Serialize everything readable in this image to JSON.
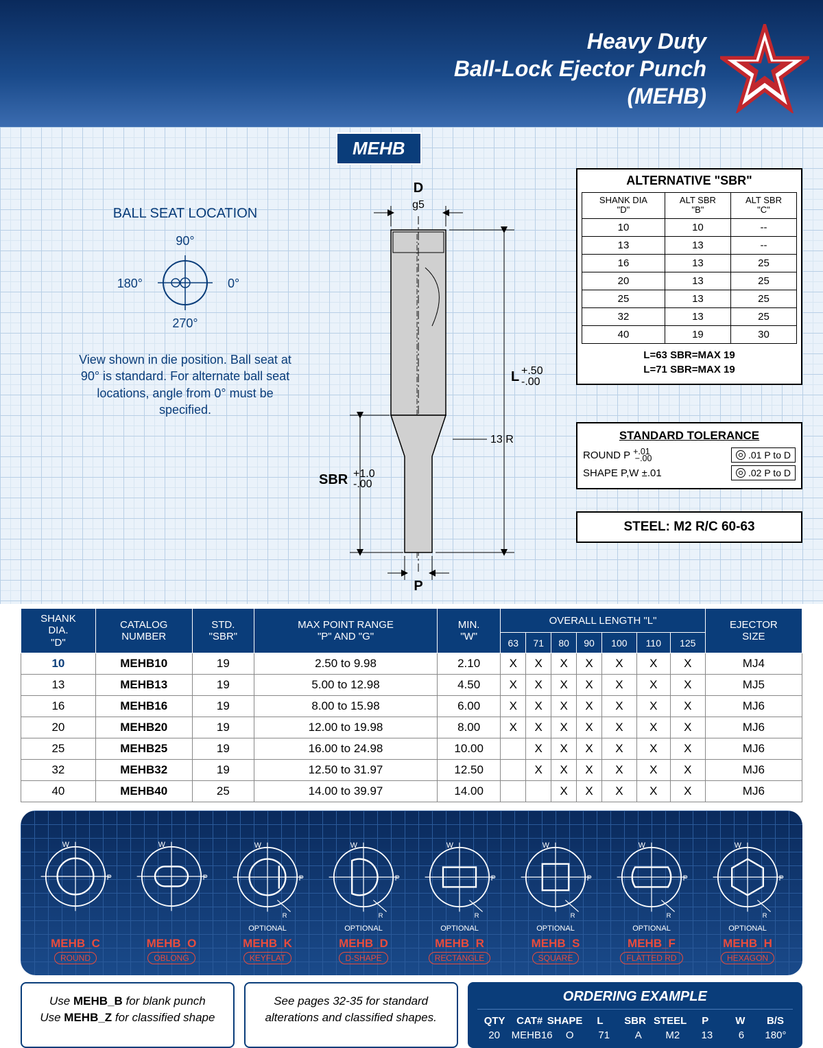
{
  "header": {
    "line1": "Heavy Duty",
    "line2": "Ball-Lock Ejector Punch",
    "line3": "(MEHB)"
  },
  "tag": "MEHB",
  "ballseat": {
    "title": "BALL SEAT LOCATION",
    "a0": "0°",
    "a90": "90°",
    "a180": "180°",
    "a270": "270°",
    "note": "View shown in die position. Ball seat at 90° is standard. For alternate ball seat locations, angle from 0° must be specified."
  },
  "diagram": {
    "D": "D",
    "g5": "g5",
    "L": "L",
    "Ltol": "+.50\n-.00",
    "SBR": "SBR",
    "SBRtol": "+1.0\n-.00",
    "R13": "13 R",
    "P": "P"
  },
  "altsbr": {
    "title": "ALTERNATIVE \"SBR\"",
    "headers": [
      "SHANK DIA\n\"D\"",
      "ALT SBR\n\"B\"",
      "ALT SBR\n\"C\""
    ],
    "rows": [
      [
        "10",
        "10",
        "--"
      ],
      [
        "13",
        "13",
        "--"
      ],
      [
        "16",
        "13",
        "25"
      ],
      [
        "20",
        "13",
        "25"
      ],
      [
        "25",
        "13",
        "25"
      ],
      [
        "32",
        "13",
        "25"
      ],
      [
        "40",
        "19",
        "30"
      ]
    ],
    "note1": "L=63   SBR=MAX 19",
    "note2": "L=71   SBR=MAX 19"
  },
  "stdtol": {
    "title": "STANDARD TOLERANCE",
    "r1l": "ROUND P",
    "r1t": "+.01\n−.00",
    "r1v": ".01  P to D",
    "r2l": "SHAPE P,W ±.01",
    "r2v": ".02  P to D"
  },
  "steel": "STEEL: M2 R/C 60-63",
  "maintable": {
    "headers": {
      "d": "SHANK\nDIA.\n\"D\"",
      "cat": "CATALOG\nNUMBER",
      "sbr": "STD.\n\"SBR\"",
      "pg": "MAX POINT RANGE\n\"P\" AND \"G\"",
      "w": "MIN.\n\"W\"",
      "L": "OVERALL LENGTH \"L\"",
      "ej": "EJECTOR\nSIZE",
      "lcols": [
        "63",
        "71",
        "80",
        "90",
        "100",
        "110",
        "125"
      ]
    },
    "rows": [
      {
        "d": "10",
        "cat": "MEHB10",
        "sbr": "19",
        "pg": "2.50 to 9.98",
        "w": "2.10",
        "L": [
          "X",
          "X",
          "X",
          "X",
          "X",
          "X",
          "X"
        ],
        "ej": "MJ4",
        "hl": true
      },
      {
        "d": "13",
        "cat": "MEHB13",
        "sbr": "19",
        "pg": "5.00 to 12.98",
        "w": "4.50",
        "L": [
          "X",
          "X",
          "X",
          "X",
          "X",
          "X",
          "X"
        ],
        "ej": "MJ5"
      },
      {
        "d": "16",
        "cat": "MEHB16",
        "sbr": "19",
        "pg": "8.00 to 15.98",
        "w": "6.00",
        "L": [
          "X",
          "X",
          "X",
          "X",
          "X",
          "X",
          "X"
        ],
        "ej": "MJ6"
      },
      {
        "d": "20",
        "cat": "MEHB20",
        "sbr": "19",
        "pg": "12.00 to 19.98",
        "w": "8.00",
        "L": [
          "X",
          "X",
          "X",
          "X",
          "X",
          "X",
          "X"
        ],
        "ej": "MJ6"
      },
      {
        "d": "25",
        "cat": "MEHB25",
        "sbr": "19",
        "pg": "16.00 to 24.98",
        "w": "10.00",
        "L": [
          "",
          "X",
          "X",
          "X",
          "X",
          "X",
          "X"
        ],
        "ej": "MJ6"
      },
      {
        "d": "32",
        "cat": "MEHB32",
        "sbr": "19",
        "pg": "12.50 to 31.97",
        "w": "12.50",
        "L": [
          "",
          "X",
          "X",
          "X",
          "X",
          "X",
          "X"
        ],
        "ej": "MJ6"
      },
      {
        "d": "40",
        "cat": "MEHB40",
        "sbr": "25",
        "pg": "14.00 to 39.97",
        "w": "14.00",
        "L": [
          "",
          "",
          "X",
          "X",
          "X",
          "X",
          "X"
        ],
        "ej": "MJ6"
      }
    ]
  },
  "shapes": [
    {
      "code": "MEHB_C",
      "name": "ROUND",
      "opt": false
    },
    {
      "code": "MEHB_O",
      "name": "OBLONG",
      "opt": false
    },
    {
      "code": "MEHB_K",
      "name": "KEYFLAT",
      "opt": true
    },
    {
      "code": "MEHB_D",
      "name": "D-SHAPE",
      "opt": true
    },
    {
      "code": "MEHB_R",
      "name": "RECTANGLE",
      "opt": true
    },
    {
      "code": "MEHB_S",
      "name": "SQUARE",
      "opt": true
    },
    {
      "code": "MEHB_F",
      "name": "FLATTED RD",
      "opt": true
    },
    {
      "code": "MEHB_H",
      "name": "HEXAGON",
      "opt": true
    }
  ],
  "optional_label": "OPTIONAL",
  "footnotes": {
    "fn1a": "Use ",
    "fn1b": "MEHB_B",
    "fn1c": " for blank punch",
    "fn2a": "Use ",
    "fn2b": "MEHB_Z",
    "fn2c": " for classified shape",
    "fn3": "See pages 32-35 for standard alterations and classified shapes."
  },
  "ordering": {
    "title": "ORDERING EXAMPLE",
    "headers": [
      "QTY",
      "CAT#",
      "SHAPE",
      "L",
      "SBR",
      "STEEL",
      "P",
      "W",
      "B/S"
    ],
    "values": [
      "20",
      "MEHB16",
      "O",
      "71",
      "A",
      "M2",
      "13",
      "6",
      "180°"
    ]
  },
  "colors": {
    "navy": "#0a3d7a",
    "red": "#e84c3d",
    "grid": "#b8cfe6"
  }
}
